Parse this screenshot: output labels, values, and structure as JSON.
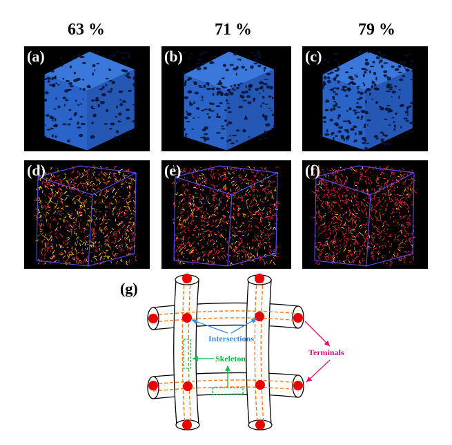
{
  "columns": [
    "63 %",
    "71 %",
    "79 %"
  ],
  "panels": {
    "a": "(a)",
    "b": "(b)",
    "c": "(c)",
    "d": "(d)",
    "e": "(e)",
    "f": "(f)",
    "g": "(g)"
  },
  "schematic": {
    "intersections": "Intersections",
    "skeleton": "Skeleton",
    "terminals": "Terminals"
  },
  "colors": {
    "cube_blue": "#2a64c8",
    "network_red": "#e8283a",
    "network_yellow": "#f0d020",
    "frame_purple": "#5a4adf",
    "skeleton_dashed": "#ff7a1a",
    "node_red": "#e60000",
    "intersections_text": "#3c8fe0",
    "skeleton_text": "#00c040",
    "terminals_text": "#e0107a"
  }
}
